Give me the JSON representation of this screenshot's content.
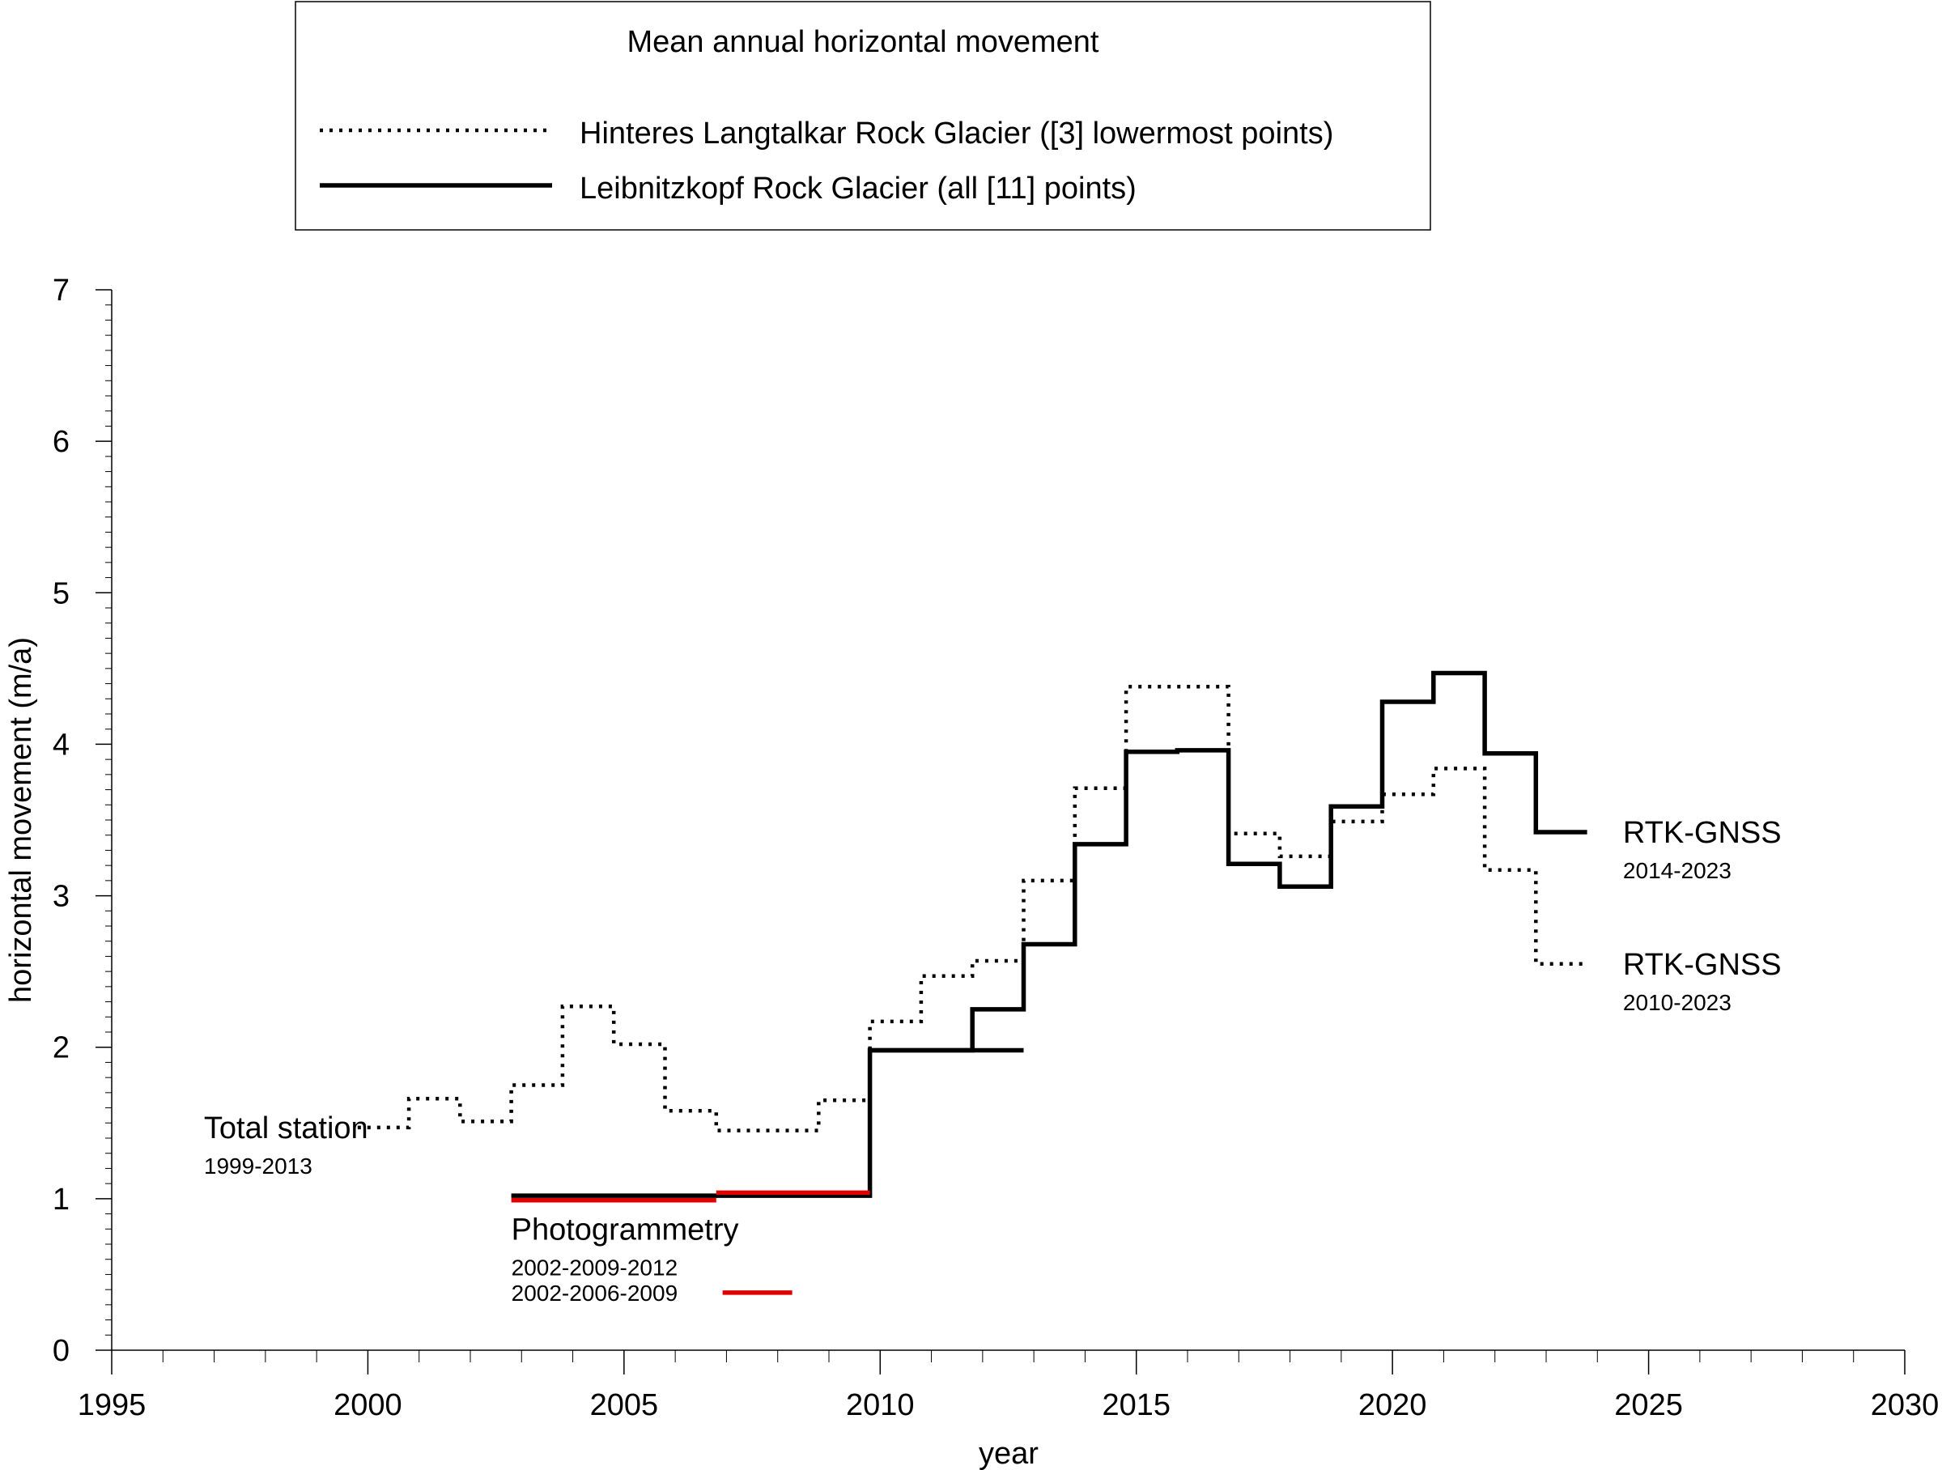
{
  "chart_data": {
    "type": "line",
    "legend": {
      "title": "Mean annual horizontal movement",
      "placement": "top-center",
      "entries": [
        "Hinteres Langtalkar Rock Glacier ([3] lowermost points)",
        "Leibnitzkopf Rock Glacier (all [11] points)"
      ]
    },
    "xlabel": "year",
    "ylabel": "horizontal movement (m/a)",
    "xlim": [
      1995,
      2030
    ],
    "ylim": [
      0,
      7
    ],
    "x_ticks": [
      "1995",
      "2000",
      "2005",
      "2010",
      "2015",
      "2020",
      "2025",
      "2030"
    ],
    "y_ticks": [
      "0",
      "1",
      "2",
      "3",
      "4",
      "5",
      "6",
      "7"
    ],
    "grid": false,
    "series": [
      {
        "name": "Hinteres Langtalkar Rock Glacier ([3] lowermost points)",
        "style": "dotted",
        "color": "#000000",
        "steps": [
          {
            "x0": 1999.8,
            "x1": 2000.8,
            "y": 1.47
          },
          {
            "x0": 2000.8,
            "x1": 2001.8,
            "y": 1.66
          },
          {
            "x0": 2001.8,
            "x1": 2002.8,
            "y": 1.51
          },
          {
            "x0": 2002.8,
            "x1": 2003.8,
            "y": 1.75
          },
          {
            "x0": 2003.8,
            "x1": 2004.8,
            "y": 2.27
          },
          {
            "x0": 2004.8,
            "x1": 2005.8,
            "y": 2.02
          },
          {
            "x0": 2005.8,
            "x1": 2006.8,
            "y": 1.58
          },
          {
            "x0": 2006.8,
            "x1": 2008.8,
            "y": 1.45
          },
          {
            "x0": 2008.8,
            "x1": 2009.8,
            "y": 1.65
          },
          {
            "x0": 2009.8,
            "x1": 2010.8,
            "y": 2.17
          },
          {
            "x0": 2010.8,
            "x1": 2011.8,
            "y": 2.47
          },
          {
            "x0": 2011.8,
            "x1": 2012.8,
            "y": 2.57
          },
          {
            "x0": 2012.8,
            "x1": 2013.8,
            "y": 3.1
          },
          {
            "x0": 2013.8,
            "x1": 2014.8,
            "y": 3.71
          },
          {
            "x0": 2014.8,
            "x1": 2016.8,
            "y": 4.38
          },
          {
            "x0": 2016.8,
            "x1": 2017.8,
            "y": 3.41
          },
          {
            "x0": 2017.8,
            "x1": 2018.8,
            "y": 3.26
          },
          {
            "x0": 2018.8,
            "x1": 2019.8,
            "y": 3.49
          },
          {
            "x0": 2019.8,
            "x1": 2020.8,
            "y": 3.67
          },
          {
            "x0": 2020.8,
            "x1": 2021.8,
            "y": 3.84
          },
          {
            "x0": 2021.8,
            "x1": 2022.8,
            "y": 3.17
          },
          {
            "x0": 2022.8,
            "x1": 2023.8,
            "y": 2.55
          }
        ]
      },
      {
        "name": "Leibnitzkopf Rock Glacier (all [11] points)",
        "style": "solid",
        "color": "#000000",
        "steps": [
          {
            "x0": 2002.8,
            "x1": 2009.8,
            "y": 1.02
          },
          {
            "x0": 2009.8,
            "x1": 2011.8,
            "y": 1.98
          },
          {
            "x0": 2011.8,
            "x1": 2012.8,
            "y": 2.25
          },
          {
            "x0": 2012.8,
            "x1": 2013.8,
            "y": 2.68
          },
          {
            "x0": 2013.8,
            "x1": 2014.8,
            "y": 3.34
          },
          {
            "x0": 2014.8,
            "x1": 2015.8,
            "y": 3.95
          },
          {
            "x0": 2015.8,
            "x1": 2016.8,
            "y": 3.96
          },
          {
            "x0": 2016.8,
            "x1": 2017.8,
            "y": 3.21
          },
          {
            "x0": 2017.8,
            "x1": 2018.8,
            "y": 3.06
          },
          {
            "x0": 2018.8,
            "x1": 2019.8,
            "y": 3.59
          },
          {
            "x0": 2019.8,
            "x1": 2020.8,
            "y": 4.28
          },
          {
            "x0": 2020.8,
            "x1": 2021.8,
            "y": 4.47
          },
          {
            "x0": 2021.8,
            "x1": 2022.8,
            "y": 3.94
          },
          {
            "x0": 2022.8,
            "x1": 2023.8,
            "y": 3.42
          }
        ]
      }
    ],
    "segments": [
      {
        "x0": 2009.8,
        "x1": 2012.8,
        "y": 1.98,
        "style": "solid",
        "color": "#000000"
      },
      {
        "x0": 2002.8,
        "x1": 2006.8,
        "y": 0.99,
        "style": "solid",
        "color": "#e00000"
      },
      {
        "x0": 2006.8,
        "x1": 2009.8,
        "y": 1.04,
        "style": "solid",
        "color": "#e00000"
      }
    ],
    "annotations": [
      {
        "title": "Total station",
        "subtitle": "1999-2013",
        "x": 1996.8,
        "y": 1.47,
        "color": "#000000"
      },
      {
        "title": "Photogrammetry",
        "subtitle": "2002-2009-2012",
        "x": 2002.8,
        "y": 0.8
      },
      {
        "subtitle": "2002-2006-2009",
        "x": 2002.8,
        "y": 0.38,
        "swatch_color": "#e00000"
      },
      {
        "title": "RTK-GNSS",
        "subtitle": "2014-2023",
        "x": 2024.5,
        "y": 3.42
      },
      {
        "title": "RTK-GNSS",
        "subtitle": "2010-2023",
        "x": 2024.5,
        "y": 2.55
      }
    ]
  }
}
